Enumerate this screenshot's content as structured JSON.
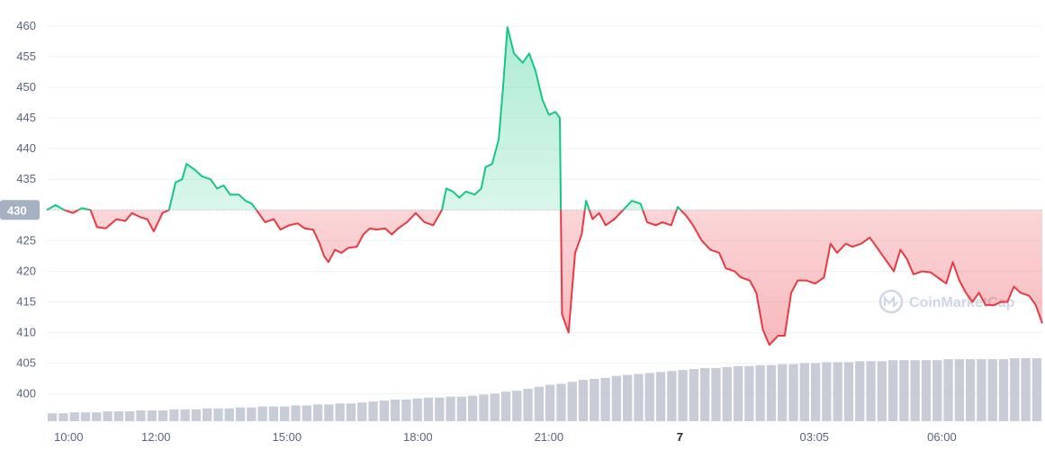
{
  "chart_data": {
    "type": "line",
    "baseline": 430,
    "baseline_label": "430",
    "y_ticks": [
      400,
      405,
      410,
      415,
      420,
      425,
      430,
      435,
      440,
      445,
      450,
      455,
      460
    ],
    "ylim": [
      396,
      461
    ],
    "x_ticks": [
      {
        "label": "10:00",
        "x": 10.0,
        "bold": false
      },
      {
        "label": "12:00",
        "x": 12.0,
        "bold": false
      },
      {
        "label": "15:00",
        "x": 15.0,
        "bold": false
      },
      {
        "label": "18:00",
        "x": 18.0,
        "bold": false
      },
      {
        "label": "21:00",
        "x": 21.0,
        "bold": false
      },
      {
        "label": "7",
        "x": 24.0,
        "bold": true
      },
      {
        "label": "03:05",
        "x": 27.08,
        "bold": false
      },
      {
        "label": "06:00",
        "x": 30.0,
        "bold": false
      }
    ],
    "xlim": [
      9.5,
      32.3
    ],
    "series": [
      {
        "values": [
          [
            9.5,
            430.0
          ],
          [
            9.7,
            430.8
          ],
          [
            9.9,
            430.0
          ],
          [
            10.1,
            429.5
          ],
          [
            10.3,
            430.3
          ],
          [
            10.5,
            430.0
          ],
          [
            10.65,
            427.2
          ],
          [
            10.85,
            427.0
          ],
          [
            11.1,
            428.5
          ],
          [
            11.3,
            428.2
          ],
          [
            11.45,
            429.5
          ],
          [
            11.65,
            428.8
          ],
          [
            11.8,
            428.5
          ],
          [
            11.95,
            426.5
          ],
          [
            12.15,
            429.5
          ],
          [
            12.3,
            430.0
          ],
          [
            12.45,
            434.5
          ],
          [
            12.6,
            435.0
          ],
          [
            12.7,
            437.5
          ],
          [
            12.9,
            436.5
          ],
          [
            13.05,
            435.5
          ],
          [
            13.25,
            435.0
          ],
          [
            13.4,
            433.5
          ],
          [
            13.55,
            434.0
          ],
          [
            13.7,
            432.5
          ],
          [
            13.9,
            432.5
          ],
          [
            14.05,
            431.5
          ],
          [
            14.2,
            431.0
          ],
          [
            14.35,
            429.5
          ],
          [
            14.5,
            428.0
          ],
          [
            14.7,
            428.5
          ],
          [
            14.85,
            426.8
          ],
          [
            15.05,
            427.5
          ],
          [
            15.25,
            427.8
          ],
          [
            15.4,
            427.0
          ],
          [
            15.6,
            426.8
          ],
          [
            15.75,
            424.5
          ],
          [
            15.85,
            422.5
          ],
          [
            15.95,
            421.5
          ],
          [
            16.1,
            423.5
          ],
          [
            16.25,
            423.0
          ],
          [
            16.4,
            423.8
          ],
          [
            16.6,
            424.0
          ],
          [
            16.75,
            426.0
          ],
          [
            16.9,
            427.0
          ],
          [
            17.05,
            426.8
          ],
          [
            17.25,
            427.0
          ],
          [
            17.4,
            426.0
          ],
          [
            17.55,
            427.0
          ],
          [
            17.75,
            428.0
          ],
          [
            17.95,
            429.5
          ],
          [
            18.15,
            428.0
          ],
          [
            18.35,
            427.5
          ],
          [
            18.55,
            430.0
          ],
          [
            18.65,
            433.5
          ],
          [
            18.8,
            433.0
          ],
          [
            18.95,
            432.0
          ],
          [
            19.1,
            433.0
          ],
          [
            19.3,
            432.5
          ],
          [
            19.45,
            433.5
          ],
          [
            19.55,
            437.0
          ],
          [
            19.7,
            437.5
          ],
          [
            19.85,
            441.5
          ],
          [
            19.95,
            450.0
          ],
          [
            20.05,
            459.8
          ],
          [
            20.2,
            455.5
          ],
          [
            20.4,
            454.0
          ],
          [
            20.55,
            455.5
          ],
          [
            20.7,
            452.5
          ],
          [
            20.85,
            448.0
          ],
          [
            21.0,
            445.5
          ],
          [
            21.15,
            446.0
          ],
          [
            21.25,
            445.0
          ],
          [
            21.3,
            413.0
          ],
          [
            21.45,
            410.0
          ],
          [
            21.6,
            423.0
          ],
          [
            21.75,
            426.0
          ],
          [
            21.85,
            431.5
          ],
          [
            22.0,
            428.5
          ],
          [
            22.15,
            429.5
          ],
          [
            22.3,
            427.5
          ],
          [
            22.5,
            428.5
          ],
          [
            22.7,
            430.0
          ],
          [
            22.9,
            431.5
          ],
          [
            23.1,
            431.0
          ],
          [
            23.25,
            428.0
          ],
          [
            23.45,
            427.5
          ],
          [
            23.6,
            428.0
          ],
          [
            23.8,
            427.5
          ],
          [
            23.95,
            430.5
          ],
          [
            24.15,
            429.0
          ],
          [
            24.3,
            427.5
          ],
          [
            24.5,
            425.0
          ],
          [
            24.7,
            423.5
          ],
          [
            24.9,
            423.0
          ],
          [
            25.05,
            420.5
          ],
          [
            25.25,
            420.0
          ],
          [
            25.4,
            419.0
          ],
          [
            25.6,
            418.5
          ],
          [
            25.75,
            416.5
          ],
          [
            25.9,
            410.5
          ],
          [
            26.05,
            408.0
          ],
          [
            26.25,
            409.5
          ],
          [
            26.4,
            409.5
          ],
          [
            26.55,
            416.5
          ],
          [
            26.7,
            418.5
          ],
          [
            26.9,
            418.5
          ],
          [
            27.1,
            418.0
          ],
          [
            27.3,
            419.0
          ],
          [
            27.45,
            424.5
          ],
          [
            27.6,
            423.0
          ],
          [
            27.8,
            424.5
          ],
          [
            27.95,
            424.0
          ],
          [
            28.15,
            424.5
          ],
          [
            28.35,
            425.5
          ],
          [
            28.5,
            424.0
          ],
          [
            28.7,
            422.0
          ],
          [
            28.9,
            420.0
          ],
          [
            29.05,
            423.5
          ],
          [
            29.2,
            422.0
          ],
          [
            29.35,
            419.5
          ],
          [
            29.55,
            420.0
          ],
          [
            29.75,
            419.8
          ],
          [
            29.9,
            419.0
          ],
          [
            30.1,
            418.0
          ],
          [
            30.25,
            421.5
          ],
          [
            30.4,
            418.5
          ],
          [
            30.55,
            416.5
          ],
          [
            30.7,
            415.0
          ],
          [
            30.85,
            416.5
          ],
          [
            31.0,
            414.5
          ],
          [
            31.2,
            414.5
          ],
          [
            31.35,
            415.0
          ],
          [
            31.5,
            415.0
          ],
          [
            31.65,
            417.5
          ],
          [
            31.8,
            416.5
          ],
          [
            32.0,
            416.0
          ],
          [
            32.15,
            414.5
          ],
          [
            32.3,
            411.5
          ]
        ]
      }
    ],
    "volume": {
      "values": [
        8,
        8,
        9,
        9,
        9,
        10,
        10,
        10,
        11,
        11,
        11,
        12,
        12,
        12,
        13,
        13,
        13,
        14,
        14,
        15,
        15,
        15,
        16,
        16,
        17,
        17,
        18,
        18,
        19,
        20,
        21,
        22,
        22,
        23,
        24,
        24,
        25,
        25,
        26,
        27,
        28,
        30,
        31,
        33,
        35,
        37,
        38,
        40,
        42,
        43,
        44,
        46,
        47,
        48,
        49,
        50,
        51,
        52,
        53,
        54,
        54,
        55,
        56,
        56,
        57,
        57,
        58,
        58,
        59,
        59,
        60,
        60,
        60,
        61,
        61,
        61,
        62,
        62,
        62,
        62,
        62,
        63,
        63,
        63,
        63,
        63,
        63,
        64,
        64,
        64
      ]
    },
    "colors": {
      "up": "#16c784",
      "down": "#ea3943",
      "volume": "#c8ccd6",
      "baseline_label_bg": "#a6b0c3"
    }
  },
  "watermark": {
    "text": "CoinMarketCap",
    "icon": "coinmarketcap-logo-icon"
  }
}
